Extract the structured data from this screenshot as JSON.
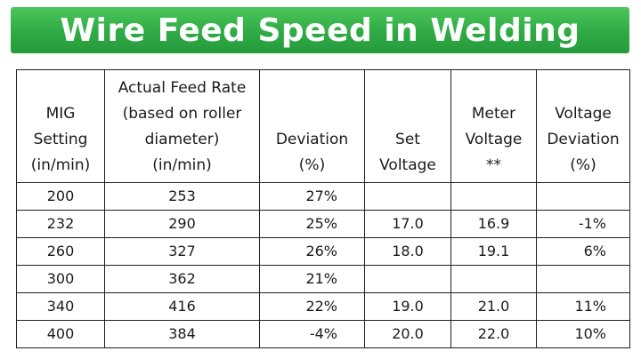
{
  "banner": {
    "title": "Wire Feed Speed in Welding",
    "color": "#2faa45"
  },
  "table": {
    "headers": [
      [
        "MIG",
        "Setting",
        "(in/min)"
      ],
      [
        "Actual Feed Rate",
        "(based on roller",
        "diameter)",
        "(in/min)"
      ],
      [
        "Deviation",
        "(%)"
      ],
      [
        "Set",
        "Voltage"
      ],
      [
        "Meter",
        "Voltage",
        "**"
      ],
      [
        "Voltage",
        "Deviation",
        "(%)"
      ]
    ],
    "rows": [
      [
        "200",
        "253",
        "27%",
        "",
        "",
        ""
      ],
      [
        "232",
        "290",
        "25%",
        "17.0",
        "16.9",
        "-1%"
      ],
      [
        "260",
        "327",
        "26%",
        "18.0",
        "19.1",
        "6%"
      ],
      [
        "300",
        "362",
        "21%",
        "",
        "",
        ""
      ],
      [
        "340",
        "416",
        "22%",
        "19.0",
        "21.0",
        "11%"
      ],
      [
        "400",
        "384",
        "-4%",
        "20.0",
        "22.0",
        "10%"
      ]
    ]
  }
}
